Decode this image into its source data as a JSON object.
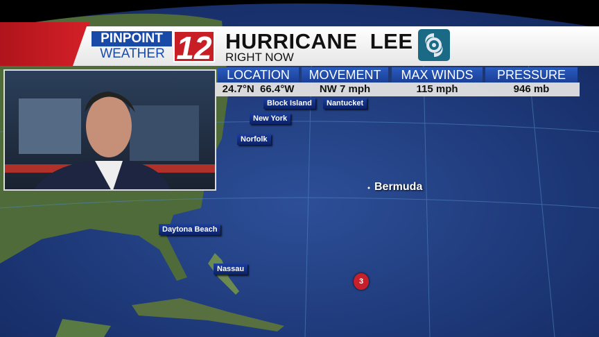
{
  "header": {
    "brand_top": "PINPOINT",
    "brand_bottom": "WEATHER",
    "channel": "12",
    "title": "HURRICANE  LEE",
    "subtitle": "RIGHT NOW",
    "icon": "hurricane-icon"
  },
  "stats": [
    {
      "label": "LOCATION",
      "value": "24.7°N  66.4°W"
    },
    {
      "label": "MOVEMENT",
      "value": "NW 7 mph"
    },
    {
      "label": "MAX WINDS",
      "value": "115 mph"
    },
    {
      "label": "PRESSURE",
      "value": "946 mb"
    }
  ],
  "map": {
    "labels": [
      "Block Island",
      "Nantucket",
      "New York",
      "Norfolk",
      "Daytona Beach",
      "Nassau"
    ],
    "bermuda": "Bermuda",
    "storm_category": "3"
  },
  "colors": {
    "brand_blue": "#1a4aa8",
    "brand_red": "#c81e26",
    "ocean": "#1f3f82",
    "land": "#4f6b3a"
  }
}
